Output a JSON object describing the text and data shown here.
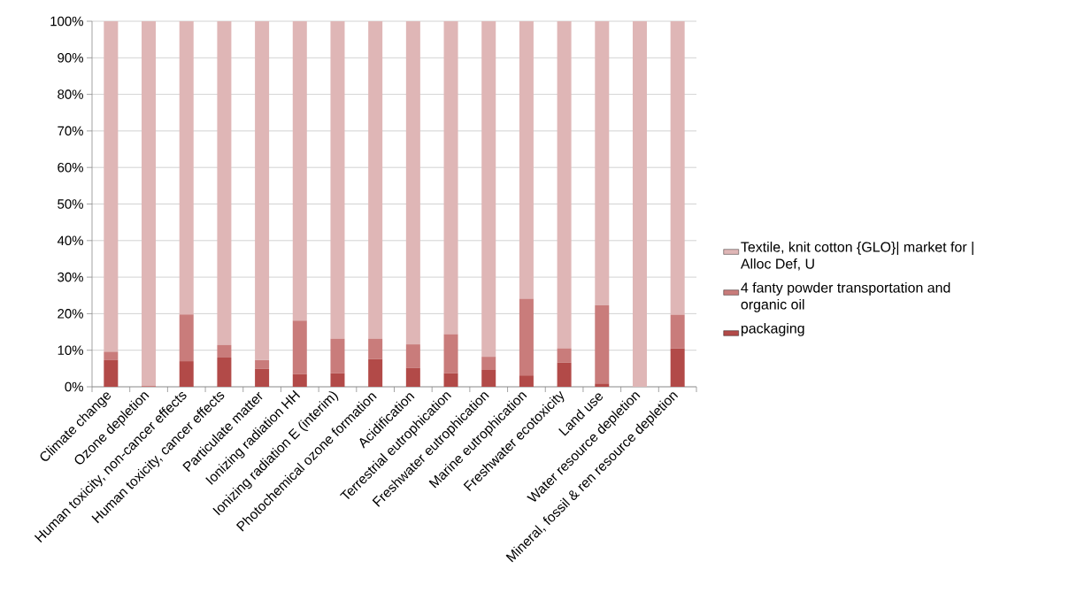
{
  "chart_data": {
    "type": "bar",
    "stacked": true,
    "categories": [
      "Climate change",
      "Ozone depletion",
      "Human toxicity, non-cancer effects",
      "Human toxicity, cancer effects",
      "Particulate matter",
      "Ionizing radiation HH",
      "Ionizing radiation E (interim)",
      "Photochemical ozone formation",
      "Acidification",
      "Terrestrial eutrophication",
      "Freshwater eutrophication",
      "Marine eutrophication",
      "Freshwater ecotoxicity",
      "Land use",
      "Water resource depletion",
      "Mineral, fossil & ren resource depletion"
    ],
    "series": [
      {
        "name": "packaging",
        "color": "#b24a48",
        "values": [
          7.3,
          0,
          7.0,
          8.0,
          4.9,
          3.5,
          3.7,
          7.6,
          5.2,
          3.7,
          4.6,
          3.1,
          6.6,
          0.9,
          0,
          10.5
        ]
      },
      {
        "name": "4 fanty powder transportation and organic oil",
        "color": "#c97c7b",
        "values": [
          2.3,
          0.3,
          12.8,
          3.4,
          2.4,
          14.6,
          9.4,
          5.5,
          6.4,
          10.7,
          3.6,
          21.0,
          3.9,
          21.4,
          0,
          9.2
        ]
      },
      {
        "name": "Textile, knit cotton {GLO}| market for | Alloc Def, U",
        "color": "#dfb6b6",
        "values": [
          90.4,
          99.7,
          80.2,
          88.6,
          92.7,
          81.9,
          86.9,
          86.9,
          88.4,
          85.6,
          91.8,
          75.9,
          89.5,
          77.7,
          100,
          80.3
        ]
      }
    ],
    "ylim": [
      0,
      100
    ],
    "yticks": [
      {
        "value": 0,
        "label": "0%"
      },
      {
        "value": 10,
        "label": "10%"
      },
      {
        "value": 20,
        "label": "20%"
      },
      {
        "value": 30,
        "label": "30%"
      },
      {
        "value": 40,
        "label": "40%"
      },
      {
        "value": 50,
        "label": "50%"
      },
      {
        "value": 60,
        "label": "60%"
      },
      {
        "value": 70,
        "label": "70%"
      },
      {
        "value": 80,
        "label": "80%"
      },
      {
        "value": 90,
        "label": "90%"
      },
      {
        "value": 100,
        "label": "100%"
      }
    ],
    "grid": "y",
    "legend": "right"
  }
}
